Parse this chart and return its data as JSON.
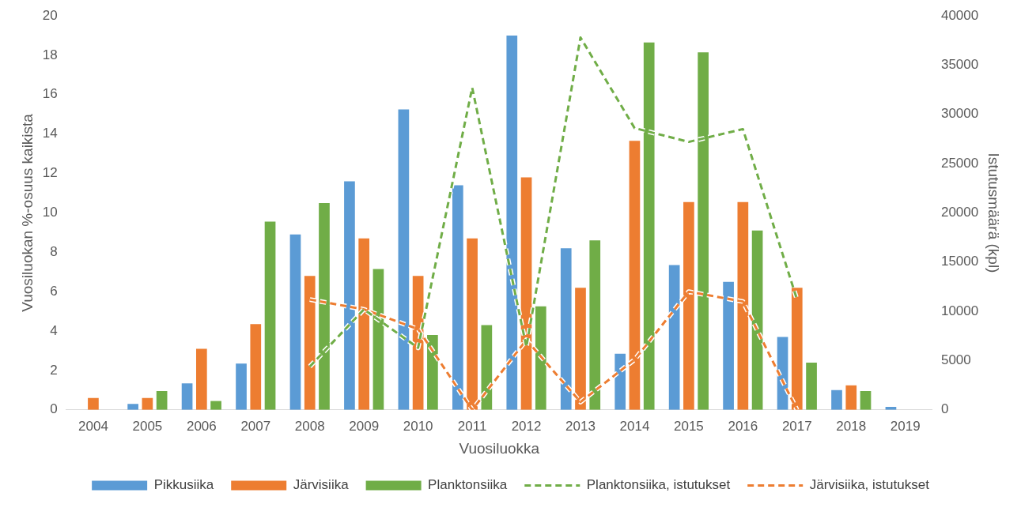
{
  "chart_data": {
    "type": "bar",
    "xlabel": "Vuosiluokka",
    "ylabel": "Vuosiluokan %-osuus kaikista",
    "y2label": "Istutusmäärä (kpl)",
    "categories": [
      "2004",
      "2005",
      "2006",
      "2007",
      "2008",
      "2009",
      "2010",
      "2011",
      "2012",
      "2013",
      "2014",
      "2015",
      "2016",
      "2017",
      "2018",
      "2019"
    ],
    "series": [
      {
        "name": "Pikkusiika",
        "color": "#5b9bd5",
        "values": [
          0,
          0.3,
          1.35,
          2.35,
          8.9,
          11.6,
          15.25,
          11.4,
          19.0,
          8.2,
          2.85,
          7.35,
          6.5,
          3.7,
          1.0,
          0.15
        ]
      },
      {
        "name": "Järvisiika",
        "color": "#ed7d31",
        "values": [
          0.6,
          0.6,
          3.1,
          4.35,
          6.8,
          8.7,
          6.8,
          8.7,
          11.8,
          6.2,
          13.65,
          10.55,
          10.55,
          6.2,
          1.25,
          0
        ]
      },
      {
        "name": "Planktonsiika",
        "color": "#70ad47",
        "values": [
          0,
          0.95,
          0.45,
          9.55,
          10.5,
          7.15,
          3.8,
          4.3,
          5.25,
          8.6,
          18.65,
          18.15,
          9.1,
          2.4,
          0.95,
          0
        ]
      },
      {
        "name": "Planktonsiika, istutukset",
        "type": "line",
        "axis": "y2",
        "line_style": "dashed",
        "color": "#70ad47",
        "values": [
          null,
          null,
          null,
          null,
          4400,
          10200,
          6300,
          32700,
          6400,
          37800,
          28600,
          27200,
          28500,
          11200,
          null,
          null
        ]
      },
      {
        "name": "Järvisiika, istutukset",
        "type": "line",
        "axis": "y2",
        "line_style": "dashed",
        "color": "#ed7d31",
        "values": [
          null,
          null,
          null,
          null,
          11200,
          10200,
          8200,
          0,
          7100,
          800,
          5100,
          12000,
          11000,
          0,
          null,
          null
        ]
      }
    ],
    "ylim": [
      0,
      20
    ],
    "yticks": [
      0,
      2,
      4,
      6,
      8,
      10,
      12,
      14,
      16,
      18,
      20
    ],
    "y2lim": [
      0,
      40000
    ],
    "y2ticks": [
      0,
      5000,
      10000,
      15000,
      20000,
      25000,
      30000,
      35000,
      40000
    ],
    "grid": false,
    "legend": "bottom",
    "marker": "none"
  }
}
